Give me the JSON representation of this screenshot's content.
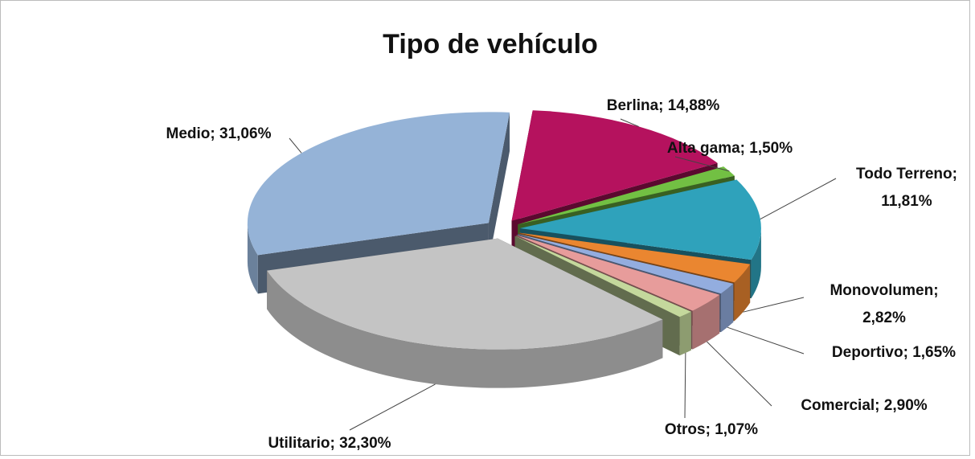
{
  "chart_data": {
    "type": "pie3d",
    "title": "Tipo de vehículo",
    "values": [
      14.88,
      1.5,
      11.81,
      2.82,
      1.65,
      2.9,
      1.07,
      32.3,
      31.06
    ],
    "value_labels": [
      "Berlina; 14,88%",
      "Alta gama; 1,50%",
      "Todo Terreno;\n11,81%",
      "Monovolumen;\n2,82%",
      "Deportivo; 1,65%",
      "Comercial; 2,90%",
      "Otros; 1,07%",
      "Utilitario; 32,30%",
      "Medio; 31,06%"
    ],
    "colors": [
      "#b5125e",
      "#72c043",
      "#2fa2bb",
      "#ea8630",
      "#93addf",
      "#e79c9b",
      "#c4d89c",
      "#c4c4c4",
      "#95b3d7"
    ]
  }
}
